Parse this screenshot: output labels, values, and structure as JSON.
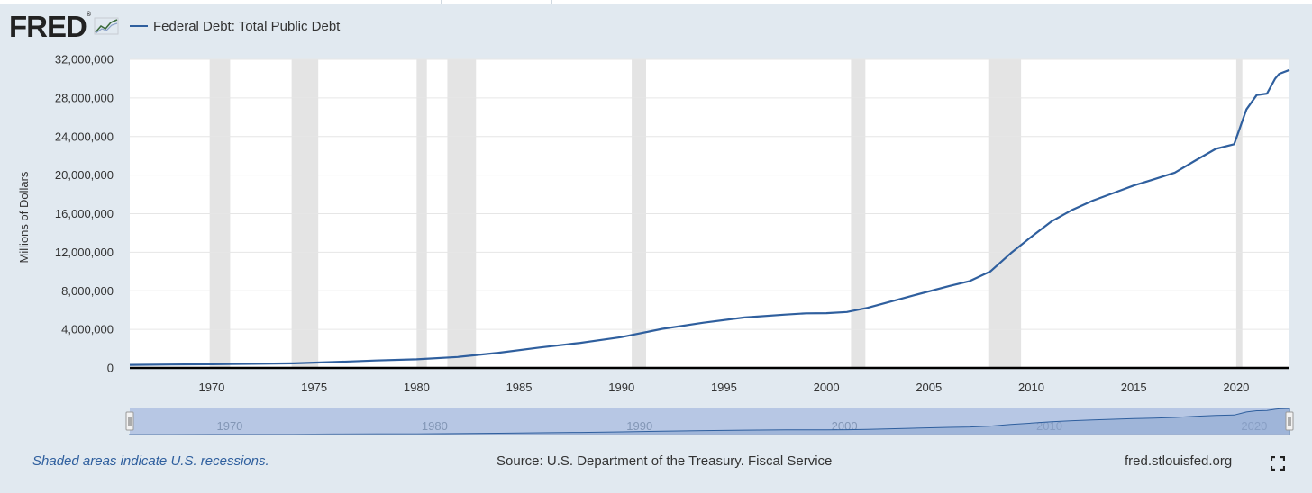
{
  "header": {
    "logo_text": "FRED",
    "logo_reg": "®",
    "series_name": "Federal Debt: Total Public Debt"
  },
  "footer": {
    "recession_note": "Shaded areas indicate U.S. recessions.",
    "source": "Source: U.S. Department of the Treasury. Fiscal Service",
    "site": "fred.stlouisfed.org"
  },
  "colors": {
    "line": "#2f5f9e",
    "recession": "#e4e4e4",
    "background": "#e1e9f0",
    "navigator_fill": "#b7c7e4"
  },
  "chart_data": {
    "type": "line",
    "title": "Federal Debt: Total Public Debt",
    "xlabel": "",
    "ylabel": "Millions of Dollars",
    "xlim": [
      1966,
      2022.6
    ],
    "ylim": [
      0,
      32000000
    ],
    "yticks": [
      0,
      4000000,
      8000000,
      12000000,
      16000000,
      20000000,
      24000000,
      28000000,
      32000000
    ],
    "ytick_labels": [
      "0",
      "4,000,000",
      "8,000,000",
      "12,000,000",
      "16,000,000",
      "20,000,000",
      "24,000,000",
      "28,000,000",
      "32,000,000"
    ],
    "xticks": [
      1970,
      1975,
      1980,
      1985,
      1990,
      1995,
      2000,
      2005,
      2010,
      2015,
      2020
    ],
    "xtick_labels": [
      "1970",
      "1975",
      "1980",
      "1985",
      "1990",
      "1995",
      "2000",
      "2005",
      "2010",
      "2015",
      "2020"
    ],
    "navigator_ticks": [
      "1970",
      "1980",
      "1990",
      "2000",
      "2010",
      "2020"
    ],
    "navigator_tick_values": [
      1970,
      1980,
      1990,
      2000,
      2010,
      2020
    ],
    "grid": true,
    "recessions": [
      [
        1969.9,
        1970.9
      ],
      [
        1973.9,
        1975.2
      ],
      [
        1980.0,
        1980.5
      ],
      [
        1981.5,
        1982.9
      ],
      [
        1990.5,
        1991.2
      ],
      [
        2001.2,
        2001.9
      ],
      [
        2007.9,
        2009.5
      ],
      [
        2020.0,
        2020.3
      ]
    ],
    "series": [
      {
        "name": "Federal Debt: Total Public Debt",
        "x": [
          1966,
          1968,
          1970,
          1972,
          1974,
          1976,
          1978,
          1980,
          1982,
          1984,
          1986,
          1988,
          1990,
          1992,
          1994,
          1996,
          1998,
          1999,
          2000,
          2001,
          2002,
          2004,
          2006,
          2007,
          2008,
          2009,
          2010,
          2011,
          2012,
          2013,
          2014,
          2015,
          2016,
          2017,
          2018,
          2019,
          2019.9,
          2020.2,
          2020.5,
          2021.0,
          2021.5,
          2021.9,
          2022.1,
          2022.6
        ],
        "values": [
          320000,
          350000,
          380000,
          430000,
          480000,
          620000,
          770000,
          900000,
          1140000,
          1580000,
          2120000,
          2600000,
          3200000,
          4060000,
          4690000,
          5230000,
          5530000,
          5660000,
          5680000,
          5800000,
          6230000,
          7380000,
          8500000,
          9010000,
          10000000,
          11900000,
          13600000,
          15220000,
          16400000,
          17350000,
          18140000,
          18920000,
          19570000,
          20250000,
          21500000,
          22720000,
          23200000,
          25000000,
          26800000,
          28300000,
          28450000,
          30000000,
          30500000,
          30900000
        ]
      }
    ]
  }
}
